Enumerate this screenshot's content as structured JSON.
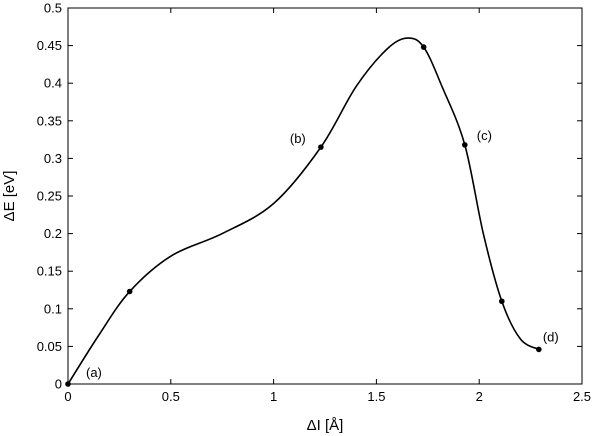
{
  "chart_data": {
    "type": "line",
    "title": "",
    "xlabel": "ΔI [Å]",
    "ylabel": "ΔE [eV]",
    "xlim": [
      0,
      2.5
    ],
    "ylim": [
      0,
      0.5
    ],
    "xticks": [
      0,
      0.5,
      1,
      1.5,
      2,
      2.5
    ],
    "xtick_labels": [
      "0",
      "0.5",
      "1",
      "1.5",
      "2",
      "2.5"
    ],
    "yticks": [
      0,
      0.05,
      0.1,
      0.15,
      0.2,
      0.25,
      0.3,
      0.35,
      0.4,
      0.45,
      0.5
    ],
    "ytick_labels": [
      "0",
      "0.05",
      "0.1",
      "0.15",
      "0.2",
      "0.25",
      "0.3",
      "0.35",
      "0.4",
      "0.45",
      "0.5"
    ],
    "grid": false,
    "line_color": "#000000",
    "series": [
      {
        "curve": {
          "x": [
            0,
            0.15,
            0.3,
            0.5,
            0.75,
            1.0,
            1.23,
            1.4,
            1.55,
            1.65,
            1.73,
            1.82,
            1.93,
            2.02,
            2.11,
            2.2,
            2.29
          ],
          "y": [
            0,
            0.065,
            0.123,
            0.17,
            0.2,
            0.24,
            0.315,
            0.395,
            0.445,
            0.46,
            0.448,
            0.395,
            0.318,
            0.2,
            0.11,
            0.06,
            0.046
          ]
        },
        "markers": {
          "x": [
            0,
            0.3,
            1.23,
            1.73,
            1.93,
            2.11,
            2.29
          ],
          "y": [
            0,
            0.123,
            0.315,
            0.448,
            0.318,
            0.11,
            0.046
          ]
        }
      }
    ],
    "annotations": [
      {
        "text": "(a)",
        "x": 0,
        "y": 0
      },
      {
        "text": "(b)",
        "x": 1.23,
        "y": 0.315
      },
      {
        "text": "(c)",
        "x": 1.93,
        "y": 0.318
      },
      {
        "text": "(d)",
        "x": 2.29,
        "y": 0.046
      }
    ]
  }
}
